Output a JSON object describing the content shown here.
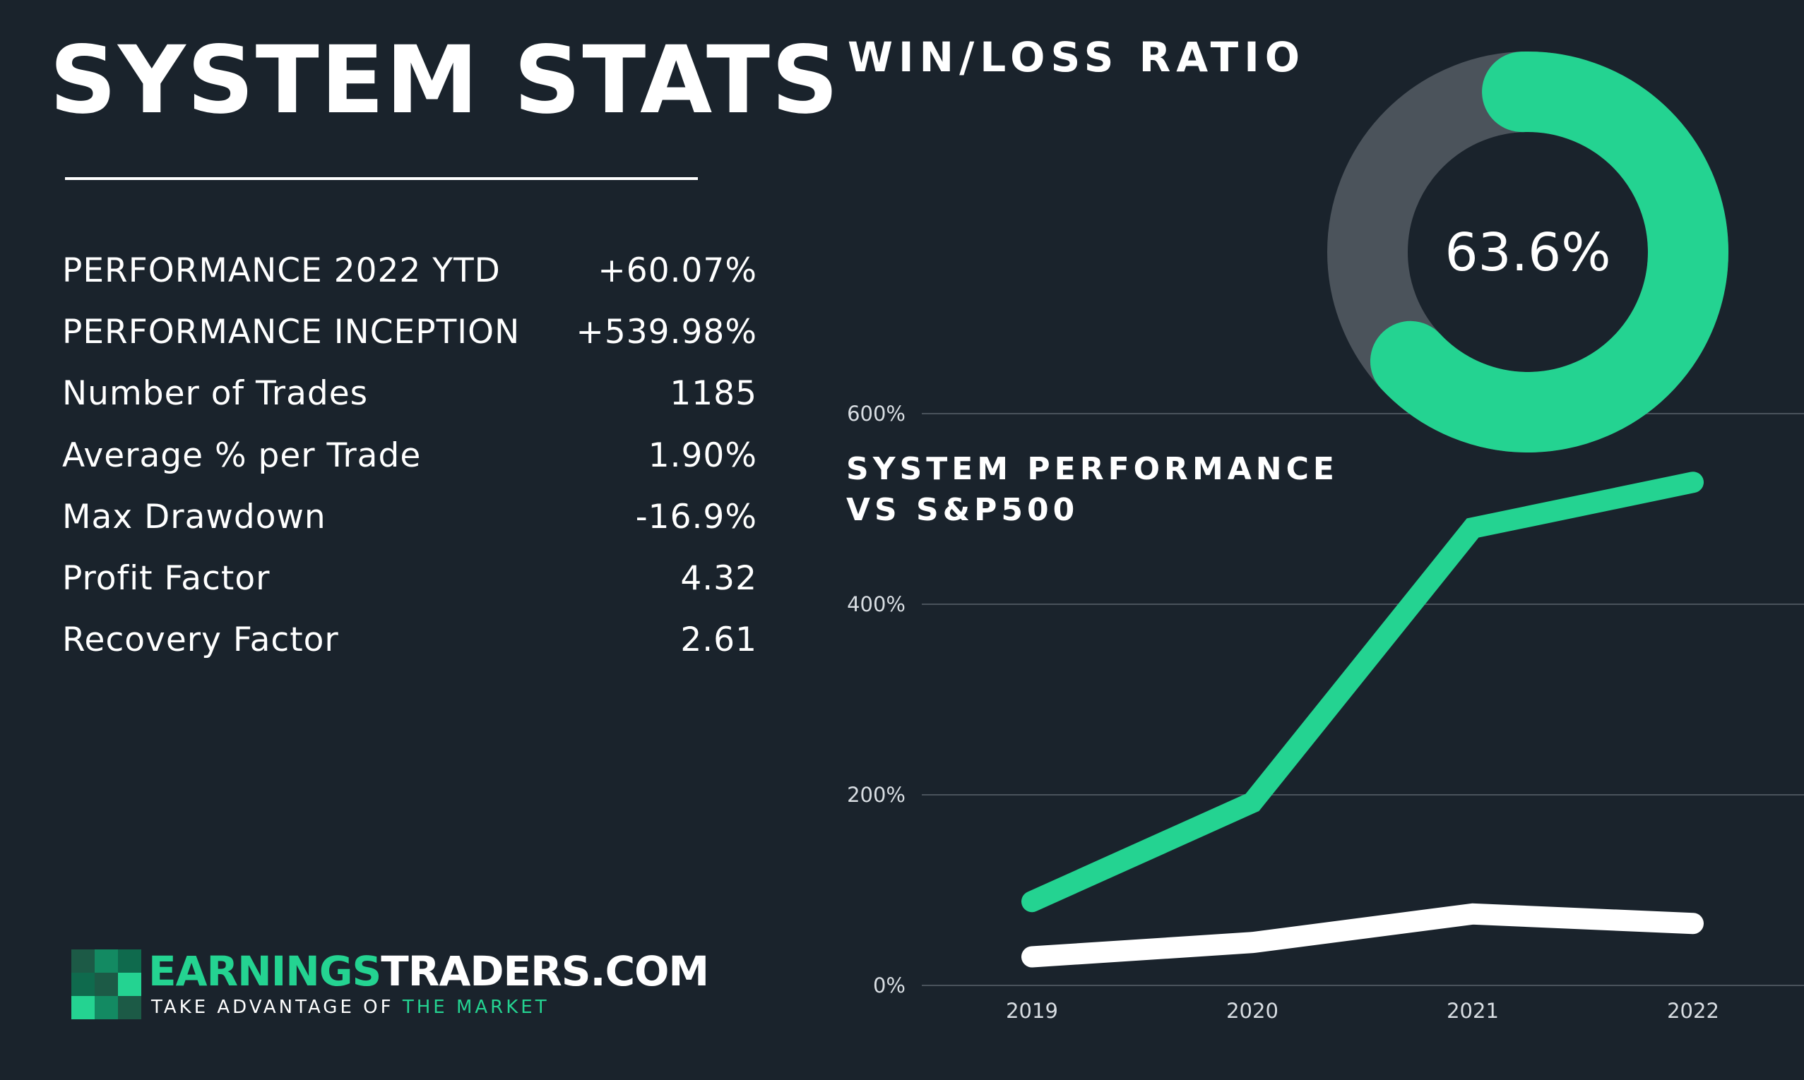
{
  "title": "SYSTEM STATS",
  "stats": [
    {
      "label": "PERFORMANCE 2022 YTD",
      "value": "+60.07%"
    },
    {
      "label": "PERFORMANCE INCEPTION",
      "value": "+539.98%"
    },
    {
      "label": "Number of Trades",
      "value": "1185"
    },
    {
      "label": "Average % per Trade",
      "value": "1.90%"
    },
    {
      "label": "Max Drawdown",
      "value": "-16.9%"
    },
    {
      "label": "Profit Factor",
      "value": "4.32"
    },
    {
      "label": "Recovery Factor",
      "value": "2.61"
    }
  ],
  "logo": {
    "name_part1": "EARNINGS",
    "name_part2": "TRADERS.COM",
    "tagline_part1": "TAKE ADVANTAGE OF",
    "tagline_part2": " THE MARKET"
  },
  "colors": {
    "background": "#1a232c",
    "accent": "#24d391",
    "donut_track": "#4b535b",
    "grid": "#4a535c",
    "sp500_line": "#ffffff"
  },
  "chart_data": [
    {
      "type": "pie",
      "title": "WIN/LOSS RATIO",
      "center_label": "63.6%",
      "values": [
        63.6,
        36.4
      ]
    },
    {
      "type": "line",
      "title": "SYSTEM PERFORMANCE VS S&P500",
      "x": [
        "2019",
        "2020",
        "2021",
        "2022"
      ],
      "ylim": [
        0,
        600
      ],
      "yticks": [
        "0%",
        "200%",
        "400%",
        "600%"
      ],
      "grid": true,
      "series": [
        {
          "values": [
            88,
            192,
            480,
            528
          ],
          "color": "#24d391"
        },
        {
          "values": [
            30,
            45,
            75,
            65
          ],
          "color": "#ffffff"
        }
      ]
    }
  ]
}
